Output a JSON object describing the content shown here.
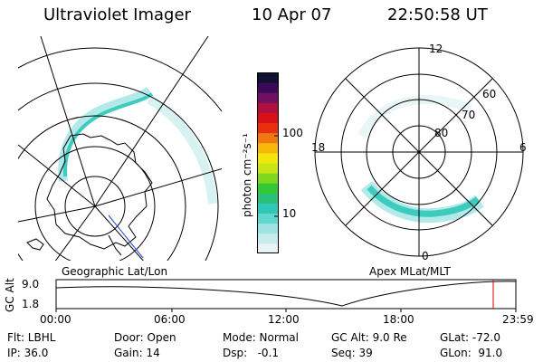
{
  "header": {
    "instrument": "Ultraviolet Imager",
    "date": "10 Apr 07",
    "time": "22:50:58 UT"
  },
  "left_panel": {
    "caption": "Geographic Lat/Lon"
  },
  "right_panel": {
    "caption": "Apex MLat/MLT",
    "mlt_labels": [
      "12",
      "18",
      "6",
      "0"
    ],
    "lat_labels": [
      "60",
      "70",
      "80"
    ]
  },
  "colorbar": {
    "unit": "photon cm⁻²s⁻¹",
    "ticks": [
      "100",
      "10"
    ],
    "colors": [
      "#e8f4f4",
      "#c8ecec",
      "#9fe3e3",
      "#5fd9d0",
      "#2fc8b8",
      "#29c07a",
      "#34c834",
      "#7fd81e",
      "#c8e614",
      "#f4e60a",
      "#f8b808",
      "#f07810",
      "#e83010",
      "#d81018",
      "#b01040",
      "#701060",
      "#3a0a5a",
      "#101030"
    ]
  },
  "timeline": {
    "axis_label": "GC Alt",
    "y_ticks": [
      "9.0",
      "1.8"
    ],
    "x_ticks": [
      "00:00",
      "06:00",
      "12:00",
      "18:00",
      "23:59"
    ]
  },
  "footer": {
    "flt": "Flt: LBHL",
    "ip": "IP: 36.0",
    "door": "Door: Open",
    "gain": "Gain: 14",
    "mode": "Mode: Normal",
    "dsp": "Dsp:   -0.1",
    "gcalt": "GC Alt: 9.0 Re",
    "seq": "Seq: 39",
    "glat": "GLat: -72.0",
    "glon": "GLon:  91.0"
  }
}
